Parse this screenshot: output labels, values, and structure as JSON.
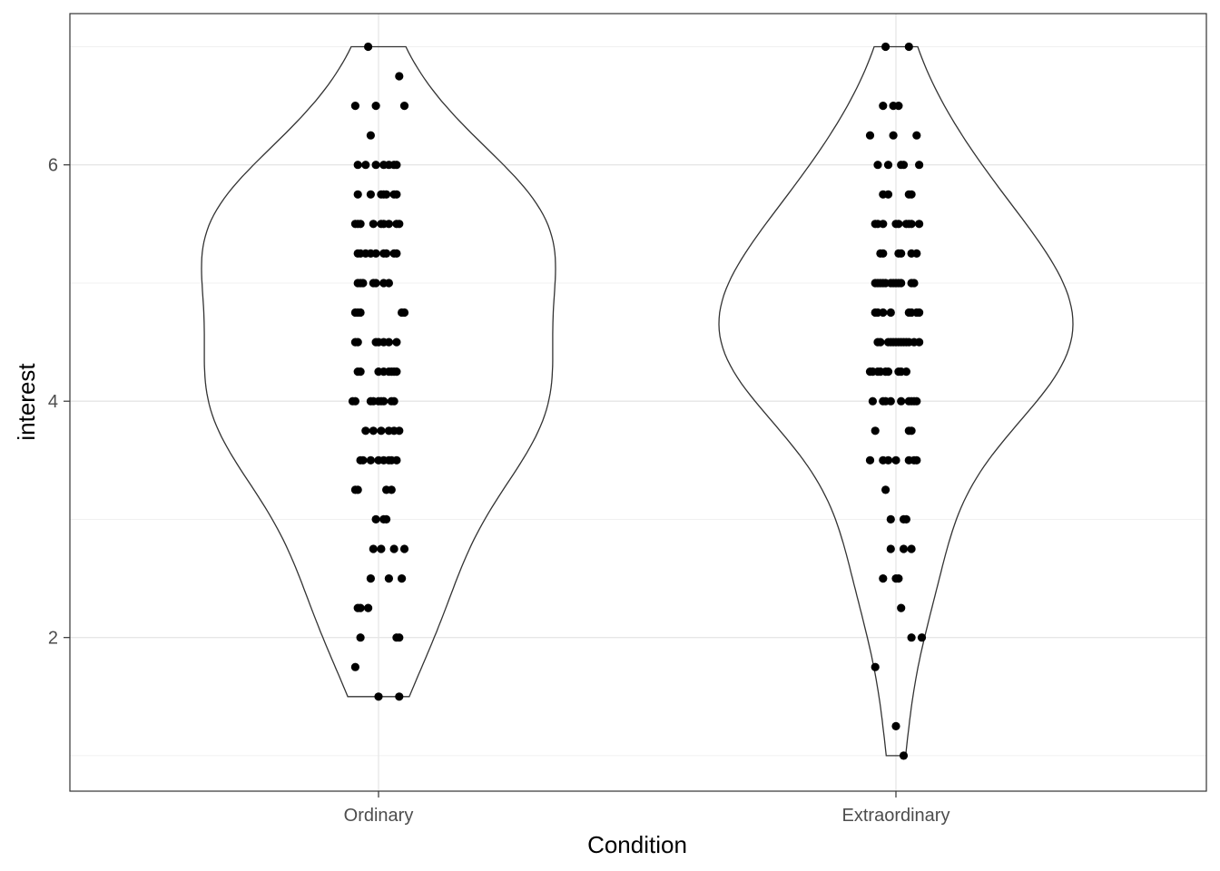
{
  "chart_data": {
    "type": "violin",
    "xlabel": "Condition",
    "ylabel": "interest",
    "categories": [
      "Ordinary",
      "Extraordinary"
    ],
    "ylim": [
      0.7,
      7.28
    ],
    "y_ticks": [
      2,
      4,
      6
    ],
    "grid": true,
    "theme": "black-and-white",
    "series": [
      {
        "category": "Ordinary",
        "range": [
          1.5,
          7.0
        ],
        "points": [
          [
            -0.04,
            7.0
          ],
          [
            0.08,
            6.75
          ],
          [
            -0.09,
            6.5
          ],
          [
            -0.01,
            6.5
          ],
          [
            0.1,
            6.5
          ],
          [
            -0.03,
            6.25
          ],
          [
            -0.08,
            6.0
          ],
          [
            -0.05,
            6.0
          ],
          [
            -0.01,
            6.0
          ],
          [
            0.02,
            6.0
          ],
          [
            0.04,
            6.0
          ],
          [
            0.06,
            6.0
          ],
          [
            0.07,
            6.0
          ],
          [
            -0.08,
            5.75
          ],
          [
            -0.03,
            5.75
          ],
          [
            0.01,
            5.75
          ],
          [
            0.02,
            5.75
          ],
          [
            0.03,
            5.75
          ],
          [
            0.06,
            5.75
          ],
          [
            0.07,
            5.75
          ],
          [
            -0.09,
            5.5
          ],
          [
            -0.08,
            5.5
          ],
          [
            -0.07,
            5.5
          ],
          [
            -0.02,
            5.5
          ],
          [
            0.01,
            5.5
          ],
          [
            0.02,
            5.5
          ],
          [
            0.04,
            5.5
          ],
          [
            0.07,
            5.5
          ],
          [
            0.08,
            5.5
          ],
          [
            -0.08,
            5.25
          ],
          [
            -0.07,
            5.25
          ],
          [
            -0.05,
            5.25
          ],
          [
            -0.03,
            5.25
          ],
          [
            -0.01,
            5.25
          ],
          [
            0.02,
            5.25
          ],
          [
            0.03,
            5.25
          ],
          [
            0.06,
            5.25
          ],
          [
            0.07,
            5.25
          ],
          [
            -0.08,
            5.0
          ],
          [
            -0.07,
            5.0
          ],
          [
            -0.06,
            5.0
          ],
          [
            -0.02,
            5.0
          ],
          [
            -0.01,
            5.0
          ],
          [
            0.02,
            5.0
          ],
          [
            0.04,
            5.0
          ],
          [
            -0.09,
            4.75
          ],
          [
            -0.08,
            4.75
          ],
          [
            -0.07,
            4.75
          ],
          [
            0.09,
            4.75
          ],
          [
            0.1,
            4.75
          ],
          [
            -0.09,
            4.5
          ],
          [
            -0.08,
            4.5
          ],
          [
            -0.01,
            4.5
          ],
          [
            0.0,
            4.5
          ],
          [
            0.02,
            4.5
          ],
          [
            0.04,
            4.5
          ],
          [
            0.07,
            4.5
          ],
          [
            -0.08,
            4.25
          ],
          [
            -0.07,
            4.25
          ],
          [
            0.0,
            4.25
          ],
          [
            0.02,
            4.25
          ],
          [
            0.04,
            4.25
          ],
          [
            0.05,
            4.25
          ],
          [
            0.06,
            4.25
          ],
          [
            0.07,
            4.25
          ],
          [
            -0.1,
            4.0
          ],
          [
            -0.09,
            4.0
          ],
          [
            -0.03,
            4.0
          ],
          [
            -0.02,
            4.0
          ],
          [
            0.0,
            4.0
          ],
          [
            0.01,
            4.0
          ],
          [
            0.02,
            4.0
          ],
          [
            0.05,
            4.0
          ],
          [
            0.06,
            4.0
          ],
          [
            -0.05,
            3.75
          ],
          [
            -0.02,
            3.75
          ],
          [
            0.01,
            3.75
          ],
          [
            0.04,
            3.75
          ],
          [
            0.06,
            3.75
          ],
          [
            0.08,
            3.75
          ],
          [
            -0.07,
            3.5
          ],
          [
            -0.06,
            3.5
          ],
          [
            -0.03,
            3.5
          ],
          [
            0.0,
            3.5
          ],
          [
            0.02,
            3.5
          ],
          [
            0.04,
            3.5
          ],
          [
            0.05,
            3.5
          ],
          [
            0.07,
            3.5
          ],
          [
            -0.09,
            3.25
          ],
          [
            -0.08,
            3.25
          ],
          [
            0.03,
            3.25
          ],
          [
            0.05,
            3.25
          ],
          [
            -0.01,
            3.0
          ],
          [
            0.02,
            3.0
          ],
          [
            0.03,
            3.0
          ],
          [
            -0.02,
            2.75
          ],
          [
            0.01,
            2.75
          ],
          [
            0.06,
            2.75
          ],
          [
            0.1,
            2.75
          ],
          [
            -0.03,
            2.5
          ],
          [
            0.04,
            2.5
          ],
          [
            0.09,
            2.5
          ],
          [
            -0.08,
            2.25
          ],
          [
            -0.07,
            2.25
          ],
          [
            -0.04,
            2.25
          ],
          [
            -0.07,
            2.0
          ],
          [
            0.07,
            2.0
          ],
          [
            0.08,
            2.0
          ],
          [
            -0.09,
            1.75
          ],
          [
            0.0,
            1.5
          ],
          [
            0.08,
            1.5
          ]
        ]
      },
      {
        "category": "Extraordinary",
        "range": [
          1.0,
          7.0
        ],
        "points": [
          [
            -0.04,
            7.0
          ],
          [
            0.05,
            7.0
          ],
          [
            -0.05,
            6.5
          ],
          [
            -0.01,
            6.5
          ],
          [
            0.01,
            6.5
          ],
          [
            -0.1,
            6.25
          ],
          [
            -0.01,
            6.25
          ],
          [
            0.08,
            6.25
          ],
          [
            -0.07,
            6.0
          ],
          [
            -0.03,
            6.0
          ],
          [
            0.02,
            6.0
          ],
          [
            0.03,
            6.0
          ],
          [
            0.09,
            6.0
          ],
          [
            -0.05,
            5.75
          ],
          [
            -0.03,
            5.75
          ],
          [
            0.05,
            5.75
          ],
          [
            0.06,
            5.75
          ],
          [
            -0.08,
            5.5
          ],
          [
            -0.07,
            5.5
          ],
          [
            -0.05,
            5.5
          ],
          [
            0.0,
            5.5
          ],
          [
            0.01,
            5.5
          ],
          [
            0.04,
            5.5
          ],
          [
            0.05,
            5.5
          ],
          [
            0.06,
            5.5
          ],
          [
            0.09,
            5.5
          ],
          [
            -0.06,
            5.25
          ],
          [
            -0.05,
            5.25
          ],
          [
            0.01,
            5.25
          ],
          [
            0.02,
            5.25
          ],
          [
            0.06,
            5.25
          ],
          [
            0.08,
            5.25
          ],
          [
            -0.08,
            5.0
          ],
          [
            -0.07,
            5.0
          ],
          [
            -0.06,
            5.0
          ],
          [
            -0.05,
            5.0
          ],
          [
            -0.04,
            5.0
          ],
          [
            -0.02,
            5.0
          ],
          [
            -0.01,
            5.0
          ],
          [
            0.0,
            5.0
          ],
          [
            0.01,
            5.0
          ],
          [
            0.02,
            5.0
          ],
          [
            0.06,
            5.0
          ],
          [
            0.07,
            5.0
          ],
          [
            -0.08,
            4.75
          ],
          [
            -0.07,
            4.75
          ],
          [
            -0.05,
            4.75
          ],
          [
            -0.02,
            4.75
          ],
          [
            0.05,
            4.75
          ],
          [
            0.06,
            4.75
          ],
          [
            0.08,
            4.75
          ],
          [
            0.09,
            4.75
          ],
          [
            -0.07,
            4.5
          ],
          [
            -0.06,
            4.5
          ],
          [
            -0.03,
            4.5
          ],
          [
            -0.02,
            4.5
          ],
          [
            -0.01,
            4.5
          ],
          [
            0.0,
            4.5
          ],
          [
            0.01,
            4.5
          ],
          [
            0.02,
            4.5
          ],
          [
            0.03,
            4.5
          ],
          [
            0.04,
            4.5
          ],
          [
            0.05,
            4.5
          ],
          [
            0.07,
            4.5
          ],
          [
            0.09,
            4.5
          ],
          [
            -0.1,
            4.25
          ],
          [
            -0.09,
            4.25
          ],
          [
            -0.07,
            4.25
          ],
          [
            -0.06,
            4.25
          ],
          [
            -0.04,
            4.25
          ],
          [
            -0.03,
            4.25
          ],
          [
            0.01,
            4.25
          ],
          [
            0.02,
            4.25
          ],
          [
            0.04,
            4.25
          ],
          [
            -0.09,
            4.0
          ],
          [
            -0.05,
            4.0
          ],
          [
            -0.04,
            4.0
          ],
          [
            -0.02,
            4.0
          ],
          [
            0.02,
            4.0
          ],
          [
            0.05,
            4.0
          ],
          [
            0.06,
            4.0
          ],
          [
            0.07,
            4.0
          ],
          [
            0.08,
            4.0
          ],
          [
            -0.08,
            3.75
          ],
          [
            0.05,
            3.75
          ],
          [
            0.06,
            3.75
          ],
          [
            -0.1,
            3.5
          ],
          [
            -0.05,
            3.5
          ],
          [
            -0.03,
            3.5
          ],
          [
            0.0,
            3.5
          ],
          [
            0.05,
            3.5
          ],
          [
            0.07,
            3.5
          ],
          [
            0.08,
            3.5
          ],
          [
            -0.04,
            3.25
          ],
          [
            -0.02,
            3.0
          ],
          [
            0.03,
            3.0
          ],
          [
            0.04,
            3.0
          ],
          [
            -0.02,
            2.75
          ],
          [
            0.03,
            2.75
          ],
          [
            0.06,
            2.75
          ],
          [
            -0.05,
            2.5
          ],
          [
            0.0,
            2.5
          ],
          [
            0.01,
            2.5
          ],
          [
            0.02,
            2.25
          ],
          [
            0.06,
            2.0
          ],
          [
            0.1,
            2.0
          ],
          [
            -0.08,
            1.75
          ],
          [
            0.0,
            1.25
          ],
          [
            0.03,
            1.0
          ]
        ]
      }
    ]
  }
}
